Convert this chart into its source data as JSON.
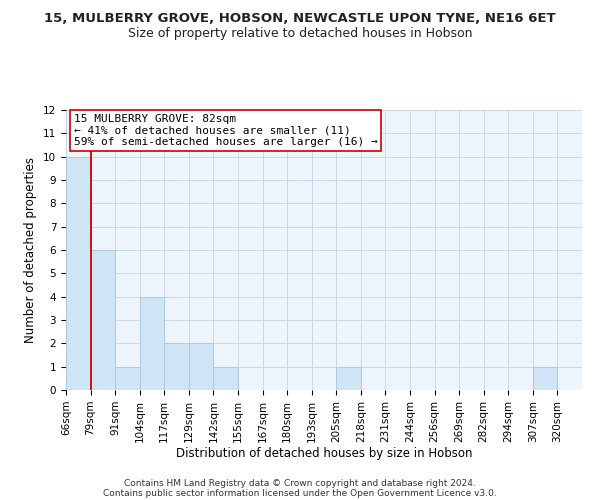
{
  "title": "15, MULBERRY GROVE, HOBSON, NEWCASTLE UPON TYNE, NE16 6ET",
  "subtitle": "Size of property relative to detached houses in Hobson",
  "xlabel": "Distribution of detached houses by size in Hobson",
  "ylabel": "Number of detached properties",
  "bin_labels": [
    "66sqm",
    "79sqm",
    "91sqm",
    "104sqm",
    "117sqm",
    "129sqm",
    "142sqm",
    "155sqm",
    "167sqm",
    "180sqm",
    "193sqm",
    "205sqm",
    "218sqm",
    "231sqm",
    "244sqm",
    "256sqm",
    "269sqm",
    "282sqm",
    "294sqm",
    "307sqm",
    "320sqm"
  ],
  "bar_values": [
    10,
    6,
    1,
    4,
    2,
    2,
    1,
    0,
    0,
    0,
    0,
    1,
    0,
    0,
    0,
    0,
    0,
    0,
    0,
    1,
    0
  ],
  "bar_color": "#cfe4f5",
  "bar_edge_color": "#aac8e4",
  "vline_x": 1.0,
  "vline_color": "#cc0000",
  "ylim": [
    0,
    12
  ],
  "yticks": [
    0,
    1,
    2,
    3,
    4,
    5,
    6,
    7,
    8,
    9,
    10,
    11,
    12
  ],
  "annotation_line1": "15 MULBERRY GROVE: 82sqm",
  "annotation_line2": "← 41% of detached houses are smaller (11)",
  "annotation_line3": "59% of semi-detached houses are larger (16) →",
  "footer_line1": "Contains HM Land Registry data © Crown copyright and database right 2024.",
  "footer_line2": "Contains public sector information licensed under the Open Government Licence v3.0.",
  "bg_color": "#ffffff",
  "plot_bg_color": "#eef4fb",
  "grid_color": "#c8d8e8",
  "title_fontsize": 9.5,
  "subtitle_fontsize": 9,
  "axis_label_fontsize": 8.5,
  "tick_fontsize": 7.5,
  "annotation_fontsize": 8,
  "footer_fontsize": 6.5
}
